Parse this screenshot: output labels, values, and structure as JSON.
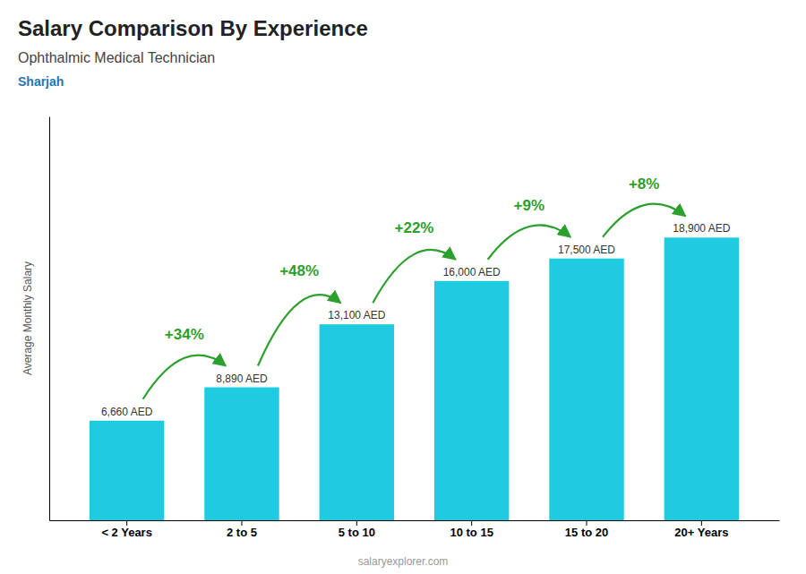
{
  "chart_data": {
    "type": "bar",
    "title": "Salary Comparison By Experience",
    "subtitle": "Ophthalmic Medical Technician",
    "y_label": "Average Monthly Salary",
    "annotations": {
      "city": "Sharjah",
      "watermark": "salaryexplorer.com",
      "changes": [
        "+34%",
        "+48%",
        "+22%",
        "+9%",
        "+8%"
      ]
    },
    "categories": [
      "< 2 Years",
      "2 to 5",
      "5 to 10",
      "10 to 15",
      "15 to 20",
      "20+ Years"
    ],
    "values": [
      6660,
      8890,
      13100,
      16000,
      17500,
      18900
    ],
    "value_labels": [
      "6,660 AED",
      "8,890 AED",
      "13,100 AED",
      "16,000 AED",
      "17,500 AED",
      "18,900 AED"
    ],
    "data_labels": true,
    "color": "#1ecbe1",
    "ylim": [
      0,
      27000
    ],
    "tick_labels": "x"
  }
}
